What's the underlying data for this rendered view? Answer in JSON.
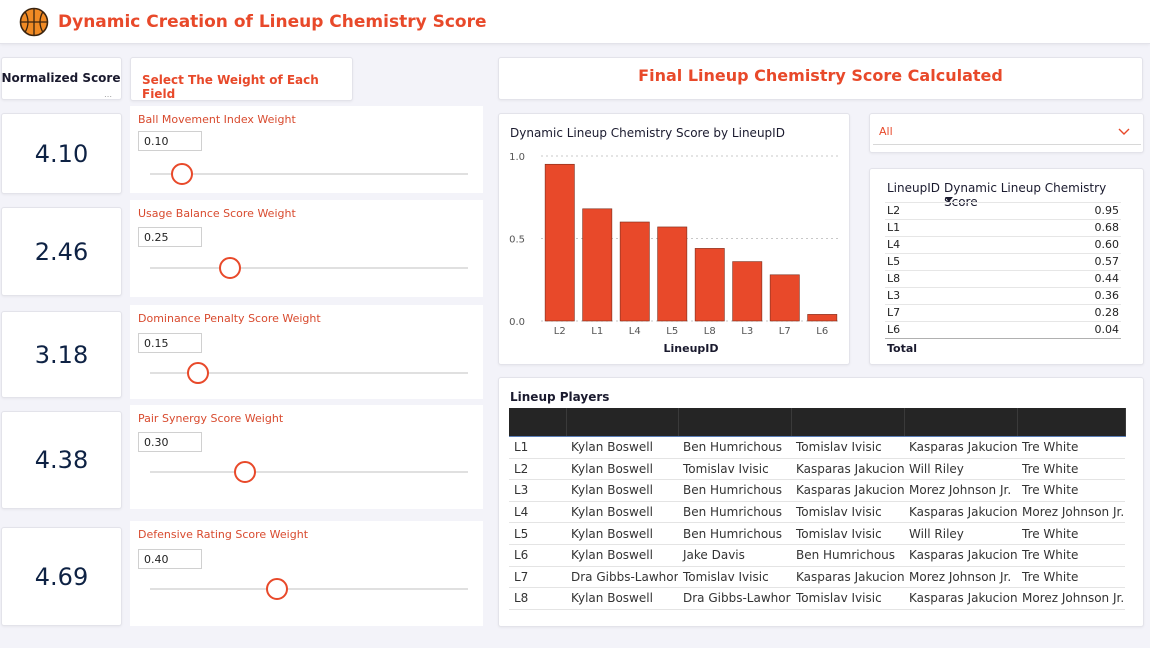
{
  "header": {
    "title": "Dynamic Creation of Lineup Chemistry Score",
    "logo_icon": "basketball-icon"
  },
  "normalized": {
    "title": "Normalized Score",
    "scores": [
      "4.10",
      "2.46",
      "3.18",
      "4.38",
      "4.69"
    ]
  },
  "weights": {
    "title": "Select The Weight of Each Field",
    "sliders": [
      {
        "label": "Ball Movement Index Weight",
        "value": "0.10",
        "fraction": 0.1
      },
      {
        "label": "Usage Balance Score Weight",
        "value": "0.25",
        "fraction": 0.25
      },
      {
        "label": "Dominance Penalty Score Weight",
        "value": "0.15",
        "fraction": 0.15
      },
      {
        "label": "Pair Synergy Score Weight",
        "value": "0.30",
        "fraction": 0.3
      },
      {
        "label": "Defensive Rating Score Weight",
        "value": "0.40",
        "fraction": 0.4
      }
    ]
  },
  "final": {
    "title": "Final Lineup Chemistry Score Calculated"
  },
  "filter": {
    "value": "All"
  },
  "colors": {
    "accent": "#e8492a",
    "bar": "#e8492a",
    "score_text": "#0e2244"
  },
  "chart_data": {
    "type": "bar",
    "title": "Dynamic Lineup Chemistry Score by LineupID",
    "xlabel": "LineupID",
    "ylabel": "",
    "categories": [
      "L2",
      "L1",
      "L4",
      "L5",
      "L8",
      "L3",
      "L7",
      "L6"
    ],
    "values": [
      0.95,
      0.68,
      0.6,
      0.57,
      0.44,
      0.36,
      0.28,
      0.04
    ],
    "yticks": [
      "0.0",
      "0.5",
      "1.0"
    ],
    "ylim": [
      0,
      1.0
    ],
    "grid": true
  },
  "score_table": {
    "col_id": "LineupID",
    "col_score": "Dynamic Lineup Chemistry Score",
    "rows": [
      {
        "id": "L2",
        "score": "0.95"
      },
      {
        "id": "L1",
        "score": "0.68"
      },
      {
        "id": "L4",
        "score": "0.60"
      },
      {
        "id": "L5",
        "score": "0.57"
      },
      {
        "id": "L8",
        "score": "0.44"
      },
      {
        "id": "L3",
        "score": "0.36"
      },
      {
        "id": "L7",
        "score": "0.28"
      },
      {
        "id": "L6",
        "score": "0.04"
      }
    ],
    "total_label": "Total"
  },
  "lineup_players": {
    "title": "Lineup Players",
    "rows": [
      [
        "L1",
        "Kylan Boswell",
        "Ben Humrichous",
        "Tomislav Ivisic",
        "Kasparas Jakucionis",
        "Tre White"
      ],
      [
        "L2",
        "Kylan Boswell",
        "Tomislav Ivisic",
        "Kasparas Jakucionis",
        "Will Riley",
        "Tre White"
      ],
      [
        "L3",
        "Kylan Boswell",
        "Ben Humrichous",
        "Kasparas Jakucionis",
        "Morez Johnson Jr.",
        "Tre White"
      ],
      [
        "L4",
        "Kylan Boswell",
        "Ben Humrichous",
        "Tomislav Ivisic",
        "Kasparas Jakucionis",
        "Morez Johnson Jr."
      ],
      [
        "L5",
        "Kylan Boswell",
        "Ben Humrichous",
        "Tomislav Ivisic",
        "Will Riley",
        "Tre White"
      ],
      [
        "L6",
        "Kylan Boswell",
        "Jake Davis",
        "Ben Humrichous",
        "Kasparas Jakucionis",
        "Tre White"
      ],
      [
        "L7",
        "Dra Gibbs-Lawhorn",
        "Tomislav Ivisic",
        "Kasparas Jakucionis",
        "Morez Johnson Jr.",
        "Tre White"
      ],
      [
        "L8",
        "Kylan Boswell",
        "Dra Gibbs-Lawhorn",
        "Tomislav Ivisic",
        "Kasparas Jakucionis",
        "Morez Johnson Jr."
      ]
    ]
  }
}
